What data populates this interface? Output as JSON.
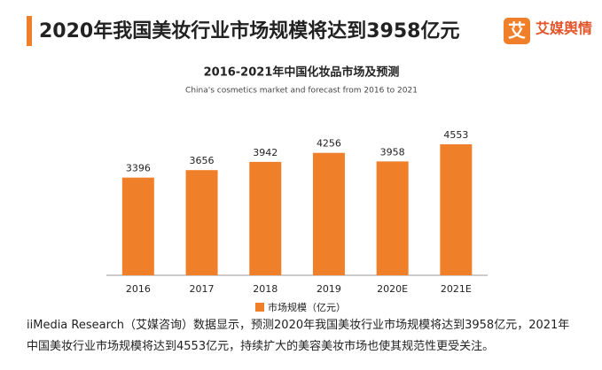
{
  "header": {
    "title": "2020年我国美妆行业市场规模将达到3958亿元",
    "logo": "艾媒舆情",
    "logo_mark": "艾"
  },
  "chart_data": {
    "type": "bar",
    "title": "2016-2021年中国化妆品市场及预测",
    "subtitle": "China's cosmetics market and forecast from 2016 to 2021",
    "categories": [
      "2016",
      "2017",
      "2018",
      "2019",
      "2020E",
      "2021E"
    ],
    "series": [
      {
        "name": "市场规模（亿元）",
        "color": "#f07f2a",
        "values": [
          3396,
          3656,
          3942,
          4256,
          3958,
          4553
        ]
      }
    ]
  },
  "footer": {
    "text": "iiMedia Research（艾媒咨询）数据显示，预测2020年我国美妆行业市场规模将达到3958亿元，2021年中国美妆行业市场规模将达到4553亿元，持续扩大的美容美妆市场也使其规范性更受关注。"
  }
}
